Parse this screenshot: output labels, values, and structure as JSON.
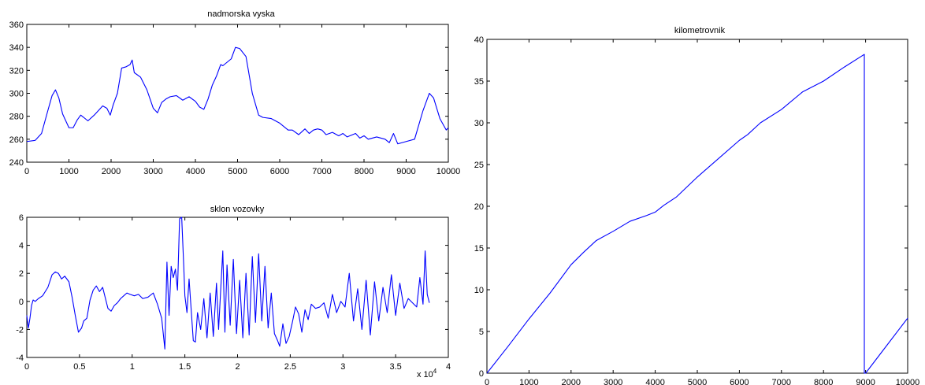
{
  "chart_data": [
    {
      "id": "elev",
      "type": "line",
      "title": "nadmorska vyska",
      "xlim": [
        0,
        10000
      ],
      "ylim": [
        240,
        360
      ],
      "xticks": [
        0,
        1000,
        2000,
        3000,
        4000,
        5000,
        6000,
        7000,
        8000,
        9000,
        10000
      ],
      "yticks": [
        240,
        260,
        280,
        300,
        320,
        340,
        360
      ],
      "xticklabels": [
        "0",
        "1000",
        "2000",
        "3000",
        "4000",
        "5000",
        "6000",
        "7000",
        "8000",
        "9000",
        "10000"
      ],
      "yticklabels": [
        "240",
        "260",
        "280",
        "300",
        "320",
        "340",
        "360"
      ],
      "color": "#0000ff",
      "series": [
        {
          "x": [
            0,
            200,
            350,
            500,
            600,
            680,
            760,
            850,
            1000,
            1100,
            1200,
            1280,
            1350,
            1450,
            1600,
            1800,
            1900,
            1980,
            2050,
            2150,
            2250,
            2350,
            2450,
            2500,
            2550,
            2700,
            2850,
            3000,
            3100,
            3200,
            3300,
            3400,
            3550,
            3700,
            3850,
            4000,
            4100,
            4200,
            4300,
            4400,
            4500,
            4600,
            4650,
            4750,
            4850,
            4950,
            5050,
            5200,
            5350,
            5500,
            5600,
            5800,
            6000,
            6200,
            6300,
            6450,
            6600,
            6700,
            6800,
            6900,
            7000,
            7100,
            7250,
            7400,
            7500,
            7600,
            7800,
            7900,
            8000,
            8100,
            8300,
            8500,
            8600,
            8700,
            8800,
            9000,
            9200,
            9400,
            9550,
            9650,
            9800,
            9950,
            10000
          ],
          "y": [
            258,
            259,
            265,
            285,
            298,
            303,
            296,
            282,
            270,
            270,
            277,
            281,
            279,
            276,
            281,
            289,
            287,
            281,
            290,
            300,
            322,
            323,
            325,
            329,
            318,
            314,
            303,
            287,
            283,
            292,
            295,
            297,
            298,
            294,
            297,
            293,
            288,
            286,
            295,
            307,
            315,
            325,
            324,
            327,
            330,
            340,
            339,
            332,
            300,
            281,
            279,
            278,
            274,
            268,
            268,
            264,
            269,
            265,
            268,
            269,
            268,
            264,
            266,
            263,
            265,
            262,
            265,
            261,
            263,
            260,
            262,
            260,
            257,
            265,
            256,
            258,
            260,
            285,
            300,
            296,
            278,
            268,
            270
          ]
        }
      ]
    },
    {
      "id": "slope",
      "type": "line",
      "title": "sklon vozovky",
      "xlim": [
        0,
        40000
      ],
      "ylim": [
        -4,
        6
      ],
      "xticks": [
        0,
        5000,
        10000,
        15000,
        20000,
        25000,
        30000,
        35000,
        40000
      ],
      "yticks": [
        -4,
        -2,
        0,
        2,
        4,
        6
      ],
      "xticklabels": [
        "0",
        "0.5",
        "1",
        "1.5",
        "2",
        "2.5",
        "3",
        "3.5",
        "4"
      ],
      "yticklabels": [
        "-4",
        "-2",
        "0",
        "2",
        "4",
        "6"
      ],
      "xmultiplier": "x 10",
      "xmultiplier_exp": "4",
      "color": "#0000ff",
      "series": [
        {
          "x": [
            0,
            150,
            300,
            450,
            600,
            800,
            1100,
            1500,
            2000,
            2400,
            2700,
            3000,
            3300,
            3600,
            4000,
            4300,
            4600,
            4900,
            5200,
            5400,
            5700,
            6000,
            6300,
            6600,
            6900,
            7200,
            7500,
            7700,
            8000,
            8300,
            8600,
            8900,
            9200,
            9500,
            9800,
            10200,
            10600,
            11000,
            11500,
            12000,
            12400,
            12800,
            13100,
            13300,
            13500,
            13700,
            13900,
            14100,
            14300,
            14500,
            14700,
            14900,
            15000,
            15200,
            15400,
            15600,
            15800,
            16000,
            16200,
            16500,
            16800,
            17100,
            17400,
            17700,
            18000,
            18200,
            18400,
            18600,
            18800,
            19000,
            19300,
            19600,
            19900,
            20200,
            20500,
            20800,
            21100,
            21400,
            21700,
            22000,
            22300,
            22600,
            22900,
            23200,
            23500,
            23800,
            24000,
            24300,
            24600,
            24900,
            25200,
            25500,
            25800,
            26100,
            26400,
            26700,
            27000,
            27400,
            27800,
            28200,
            28600,
            29000,
            29400,
            29800,
            30200,
            30600,
            31000,
            31400,
            31800,
            32200,
            32600,
            33000,
            33400,
            33800,
            34200,
            34600,
            35000,
            35400,
            35800,
            36200,
            36600,
            37000,
            37300,
            37600,
            37800,
            38000,
            38200
          ],
          "y": [
            -1.0,
            -1.9,
            -1.2,
            -0.3,
            0.1,
            0.0,
            0.2,
            0.4,
            1.0,
            1.9,
            2.1,
            2.0,
            1.6,
            1.8,
            1.4,
            0.3,
            -1.0,
            -2.2,
            -1.9,
            -1.4,
            -1.2,
            0.1,
            0.8,
            1.1,
            0.7,
            1.0,
            0.1,
            -0.5,
            -0.7,
            -0.3,
            -0.1,
            0.2,
            0.4,
            0.6,
            0.5,
            0.4,
            0.5,
            0.2,
            0.3,
            0.6,
            -0.2,
            -1.2,
            -3.4,
            2.8,
            -1.0,
            2.5,
            1.7,
            2.3,
            0.8,
            5.9,
            6.0,
            2.4,
            0.4,
            -0.8,
            1.6,
            -0.6,
            -2.8,
            -2.9,
            -0.8,
            -2.0,
            0.2,
            -2.6,
            0.6,
            -2.5,
            1.3,
            -2.0,
            0.8,
            3.6,
            -2.2,
            2.6,
            -1.7,
            3.0,
            -2.3,
            1.5,
            -2.6,
            2.0,
            -2.4,
            3.2,
            -1.5,
            3.4,
            -1.4,
            2.5,
            -1.9,
            0.6,
            -2.3,
            -2.8,
            -3.2,
            -1.6,
            -3.0,
            -2.5,
            -1.5,
            -0.4,
            -0.9,
            -2.2,
            -0.6,
            -1.3,
            -0.2,
            -0.5,
            -0.4,
            -0.1,
            -1.2,
            0.5,
            -0.8,
            0.0,
            -0.4,
            2.0,
            -1.4,
            0.9,
            -2.0,
            1.5,
            -2.4,
            1.4,
            -1.4,
            1.0,
            -0.8,
            1.9,
            -1.0,
            1.3,
            -0.5,
            0.2,
            -0.1,
            -0.4,
            1.7,
            -0.2,
            3.6,
            0.5,
            -0.1
          ]
        }
      ]
    },
    {
      "id": "km",
      "type": "line",
      "title": "kilometrovnik",
      "xlim": [
        0,
        10000
      ],
      "ylim": [
        0,
        40
      ],
      "xticks": [
        0,
        1000,
        2000,
        3000,
        4000,
        5000,
        6000,
        7000,
        8000,
        9000,
        10000
      ],
      "yticks": [
        0,
        5,
        10,
        15,
        20,
        25,
        30,
        35,
        40
      ],
      "xticklabels": [
        "0",
        "1000",
        "2000",
        "3000",
        "4000",
        "5000",
        "6000",
        "7000",
        "8000",
        "9000",
        "10000"
      ],
      "yticklabels": [
        "0",
        "5",
        "10",
        "15",
        "20",
        "25",
        "30",
        "35",
        "40"
      ],
      "color": "#0000ff",
      "series": [
        {
          "x": [
            0,
            500,
            1000,
            1500,
            2000,
            2300,
            2600,
            3000,
            3400,
            3800,
            4000,
            4200,
            4500,
            5000,
            5500,
            6000,
            6200,
            6500,
            7000,
            7500,
            8000,
            8500,
            8970,
            8970,
            9000,
            9500,
            10000
          ],
          "y": [
            0,
            3.2,
            6.5,
            9.6,
            13.0,
            14.5,
            15.9,
            17.0,
            18.2,
            18.9,
            19.3,
            20.1,
            21.1,
            23.5,
            25.7,
            27.9,
            28.6,
            30.0,
            31.6,
            33.7,
            35.0,
            36.7,
            38.2,
            0.0,
            0.0,
            3.3,
            6.6
          ]
        }
      ]
    }
  ]
}
